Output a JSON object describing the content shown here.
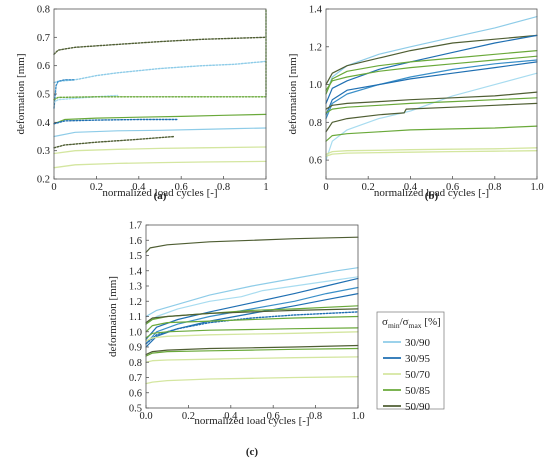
{
  "chart_data": [
    {
      "panel": "a",
      "panel_label": "(a)",
      "type": "line",
      "xlabel": "normalized load cycles [-]",
      "ylabel": "deformation [mm]",
      "xlim": [
        0,
        1
      ],
      "ylim": [
        0.2,
        0.8
      ],
      "xticks": [
        0,
        0.2,
        0.4,
        0.6,
        0.8,
        1
      ],
      "xtick_labels": [
        "0",
        "0.2",
        "0.4",
        "0.6",
        "0.8",
        "1"
      ],
      "yticks": [
        0.2,
        0.3,
        0.4,
        0.5,
        0.6,
        0.7,
        0.8
      ],
      "ytick_labels": [
        "0.2",
        "0.3",
        "0.4",
        "0.5",
        "0.6",
        "0.7",
        "0.8"
      ],
      "grid": false,
      "series": [
        {
          "group": "50/90",
          "color": "#4f5e33",
          "dash": "dotted",
          "x": [
            0,
            0.02,
            0.1,
            0.3,
            0.5,
            0.7,
            1.0
          ],
          "y": [
            0.64,
            0.655,
            0.665,
            0.675,
            0.685,
            0.693,
            0.7
          ]
        },
        {
          "group": "30/90",
          "color": "#8ecce8",
          "dash": "dotted",
          "x": [
            0,
            0.02,
            0.1,
            0.2,
            0.3,
            0.5,
            0.7,
            0.85,
            1.0
          ],
          "y": [
            0.54,
            0.545,
            0.55,
            0.565,
            0.575,
            0.59,
            0.6,
            0.605,
            0.615
          ]
        },
        {
          "group": "30/95",
          "color": "#3a8fc8",
          "dash": "dotted",
          "x": [
            0,
            0.01,
            0.02,
            0.05,
            0.1
          ],
          "y": [
            0.45,
            0.53,
            0.545,
            0.55,
            0.55
          ]
        },
        {
          "group": "30/90",
          "color": "#a8dcf0",
          "dash": "dotted",
          "x": [
            0,
            0.02,
            0.1,
            0.2,
            0.3
          ],
          "y": [
            0.47,
            0.48,
            0.485,
            0.49,
            0.495
          ]
        },
        {
          "group": "50/85",
          "color": "#6aa93a",
          "dash": "dotted",
          "x": [
            0,
            0.02,
            0.2,
            0.5,
            0.8,
            0.99,
            1.0,
            1.0
          ],
          "y": [
            0.48,
            0.488,
            0.49,
            0.49,
            0.49,
            0.49,
            0.49,
            0.8
          ]
        },
        {
          "group": "50/85",
          "color": "#6aa93a",
          "dash": "solid",
          "x": [
            0,
            0.05,
            0.2,
            0.4,
            0.6,
            0.8,
            1.0
          ],
          "y": [
            0.395,
            0.41,
            0.415,
            0.418,
            0.421,
            0.425,
            0.428
          ]
        },
        {
          "group": "30/95",
          "color": "#1f6fb2",
          "dash": "dotted",
          "x": [
            0,
            0.05,
            0.2,
            0.4,
            0.58
          ],
          "y": [
            0.395,
            0.405,
            0.408,
            0.41,
            0.41
          ]
        },
        {
          "group": "30/90",
          "color": "#8ecce8",
          "dash": "solid",
          "x": [
            0,
            0.1,
            0.3,
            0.5,
            0.7,
            0.85,
            1.0
          ],
          "y": [
            0.35,
            0.365,
            0.37,
            0.372,
            0.375,
            0.378,
            0.38
          ]
        },
        {
          "group": "50/90",
          "color": "#4f5e33",
          "dash": "dotted",
          "x": [
            0,
            0.05,
            0.2,
            0.4,
            0.57
          ],
          "y": [
            0.31,
            0.32,
            0.33,
            0.34,
            0.35
          ]
        },
        {
          "group": "50/70",
          "color": "#d4e6a0",
          "dash": "solid",
          "x": [
            0,
            0.1,
            0.3,
            0.5,
            0.7,
            1.0
          ],
          "y": [
            0.29,
            0.3,
            0.305,
            0.308,
            0.31,
            0.313
          ]
        },
        {
          "group": "50/70",
          "color": "#d4e6a0",
          "dash": "solid",
          "x": [
            0,
            0.1,
            0.3,
            0.5,
            0.7,
            1.0
          ],
          "y": [
            0.24,
            0.25,
            0.255,
            0.258,
            0.26,
            0.262
          ]
        }
      ]
    },
    {
      "panel": "b",
      "panel_label": "(b)",
      "type": "line",
      "xlabel": "normalized load cycles [-]",
      "ylabel": "deformation [mm]",
      "xlim": [
        0,
        1
      ],
      "ylim": [
        0.5,
        1.4
      ],
      "xticks": [
        0,
        0.2,
        0.4,
        0.6,
        0.8,
        1
      ],
      "xtick_labels": [
        "0",
        "0.2",
        "0.4",
        "0.6",
        "0.8",
        "1.0"
      ],
      "yticks": [
        0.6,
        0.8,
        1.0,
        1.2,
        1.4
      ],
      "ytick_labels": [
        "0.6",
        "0.8",
        "1.0",
        "1.2",
        "1.4"
      ],
      "grid": false,
      "series": [
        {
          "group": "30/90",
          "color": "#8ecce8",
          "x": [
            0,
            0.03,
            0.1,
            0.25,
            0.4,
            0.6,
            0.8,
            1.0
          ],
          "y": [
            0.95,
            1.04,
            1.1,
            1.16,
            1.2,
            1.25,
            1.3,
            1.36
          ]
        },
        {
          "group": "50/90",
          "color": "#4f5e33",
          "x": [
            0,
            0.03,
            0.1,
            0.25,
            0.4,
            0.6,
            0.8,
            1.0
          ],
          "y": [
            1.0,
            1.06,
            1.1,
            1.14,
            1.18,
            1.22,
            1.24,
            1.26
          ]
        },
        {
          "group": "30/95",
          "color": "#1f6fb2",
          "x": [
            0,
            0.03,
            0.1,
            0.25,
            0.4,
            0.6,
            0.8,
            1.0
          ],
          "y": [
            0.9,
            0.98,
            1.02,
            1.08,
            1.12,
            1.17,
            1.22,
            1.26
          ]
        },
        {
          "group": "50/85",
          "color": "#6aa93a",
          "x": [
            0,
            0.03,
            0.1,
            0.25,
            0.4,
            0.6,
            0.8,
            1.0
          ],
          "y": [
            0.95,
            1.03,
            1.07,
            1.1,
            1.12,
            1.14,
            1.16,
            1.18
          ]
        },
        {
          "group": "50/85",
          "color": "#6aa93a",
          "x": [
            0,
            0.03,
            0.1,
            0.25,
            0.4,
            0.6,
            0.8,
            1.0
          ],
          "y": [
            0.97,
            1.02,
            1.04,
            1.07,
            1.09,
            1.11,
            1.13,
            1.15
          ]
        },
        {
          "group": "30/95",
          "color": "#3a8fc8",
          "x": [
            0,
            0.03,
            0.1,
            0.25,
            0.4,
            0.6,
            0.8,
            1.0
          ],
          "y": [
            0.82,
            0.9,
            0.95,
            1.0,
            1.04,
            1.08,
            1.11,
            1.13
          ]
        },
        {
          "group": "30/95",
          "color": "#1f6fb2",
          "x": [
            0,
            0.03,
            0.1,
            0.25,
            0.4,
            0.6,
            0.8,
            1.0
          ],
          "y": [
            0.84,
            0.92,
            0.97,
            1.0,
            1.03,
            1.06,
            1.09,
            1.12
          ]
        },
        {
          "group": "30/90",
          "color": "#a8dcf0",
          "x": [
            0,
            0.03,
            0.1,
            0.25,
            0.4,
            0.6,
            0.8,
            1.0
          ],
          "y": [
            0.6,
            0.7,
            0.76,
            0.82,
            0.86,
            0.94,
            1.0,
            1.06
          ]
        },
        {
          "group": "50/90",
          "color": "#4f5e33",
          "x": [
            0,
            0.03,
            0.1,
            0.25,
            0.4,
            0.6,
            0.8,
            1.0
          ],
          "y": [
            0.87,
            0.89,
            0.9,
            0.91,
            0.92,
            0.93,
            0.94,
            0.96
          ]
        },
        {
          "group": "50/85",
          "color": "#6aa93a",
          "x": [
            0,
            0.03,
            0.1,
            0.25,
            0.4,
            0.6,
            0.8,
            1.0
          ],
          "y": [
            0.85,
            0.87,
            0.88,
            0.89,
            0.9,
            0.91,
            0.92,
            0.93
          ]
        },
        {
          "group": "50/90",
          "color": "#4f5e33",
          "x": [
            0,
            0.03,
            0.1,
            0.25,
            0.37,
            0.38,
            0.6,
            0.8,
            1.0
          ],
          "y": [
            0.75,
            0.8,
            0.82,
            0.84,
            0.85,
            0.87,
            0.88,
            0.89,
            0.9
          ]
        },
        {
          "group": "50/85",
          "color": "#6aa93a",
          "x": [
            0,
            0.03,
            0.1,
            0.25,
            0.4,
            0.6,
            0.8,
            1.0
          ],
          "y": [
            0.7,
            0.73,
            0.74,
            0.75,
            0.76,
            0.765,
            0.77,
            0.78
          ]
        },
        {
          "group": "50/70",
          "color": "#d4e6a0",
          "x": [
            0,
            0.03,
            0.1,
            0.25,
            0.4,
            0.6,
            0.8,
            1.0
          ],
          "y": [
            0.63,
            0.645,
            0.65,
            0.652,
            0.655,
            0.658,
            0.66,
            0.665
          ]
        },
        {
          "group": "50/70",
          "color": "#d4e6a0",
          "x": [
            0,
            0.03,
            0.1,
            0.25,
            0.4,
            0.6,
            0.8,
            1.0
          ],
          "y": [
            0.62,
            0.632,
            0.637,
            0.64,
            0.642,
            0.645,
            0.647,
            0.65
          ]
        }
      ]
    },
    {
      "panel": "c",
      "panel_label": "(c)",
      "type": "line",
      "xlabel": "normalized load cycles [-]",
      "ylabel": "deformation [mm]",
      "xlim": [
        0,
        1
      ],
      "ylim": [
        0.5,
        1.7
      ],
      "xticks": [
        0,
        0.2,
        0.4,
        0.6,
        0.8,
        1
      ],
      "xtick_labels": [
        "0.0",
        "0.2",
        "0.4",
        "0.6",
        "0.8",
        "1.0"
      ],
      "yticks": [
        0.5,
        0.6,
        0.7,
        0.8,
        0.9,
        1.0,
        1.1,
        1.2,
        1.3,
        1.4,
        1.5,
        1.6,
        1.7
      ],
      "ytick_labels": [
        "0.5",
        "0.6",
        "0.7",
        "0.8",
        "0.9",
        "1.0",
        "1.1",
        "1.2",
        "1.3",
        "1.4",
        "1.5",
        "1.6",
        "1.7"
      ],
      "grid": false,
      "legend": {
        "placement": "right",
        "title_main": "σ",
        "title_sub1": "min",
        "title_mid": "/σ",
        "title_sub2": "max",
        "title_unit": " [%]",
        "entries": [
          {
            "label": "30/90",
            "color": "#8ecce8"
          },
          {
            "label": "30/95",
            "color": "#1f6fb2"
          },
          {
            "label": "50/70",
            "color": "#d4e6a0"
          },
          {
            "label": "50/85",
            "color": "#6aa93a"
          },
          {
            "label": "50/90",
            "color": "#4f5e33"
          }
        ]
      },
      "series": [
        {
          "group": "50/90",
          "color": "#4f5e33",
          "dash": "solid",
          "x": [
            0,
            0.02,
            0.1,
            0.3,
            0.5,
            0.7,
            1.0
          ],
          "y": [
            1.52,
            1.55,
            1.57,
            1.59,
            1.6,
            1.61,
            1.62
          ]
        },
        {
          "group": "30/90",
          "color": "#8ecce8",
          "dash": "solid",
          "x": [
            0,
            0.05,
            0.15,
            0.3,
            0.5,
            0.7,
            0.9,
            1.0
          ],
          "y": [
            1.1,
            1.14,
            1.18,
            1.24,
            1.3,
            1.35,
            1.4,
            1.42
          ]
        },
        {
          "group": "30/90",
          "color": "#a8dcf0",
          "dash": "solid",
          "x": [
            0,
            0.05,
            0.15,
            0.3,
            0.45,
            0.55,
            0.7,
            0.85,
            1.0
          ],
          "y": [
            1.05,
            1.1,
            1.15,
            1.2,
            1.23,
            1.27,
            1.3,
            1.33,
            1.36
          ]
        },
        {
          "group": "30/95",
          "color": "#1f6fb2",
          "dash": "solid",
          "x": [
            0,
            0.05,
            0.15,
            0.3,
            0.5,
            0.7,
            0.85,
            1.0
          ],
          "y": [
            0.95,
            1.03,
            1.08,
            1.13,
            1.19,
            1.25,
            1.3,
            1.35
          ]
        },
        {
          "group": "30/95",
          "color": "#3a8fc8",
          "dash": "solid",
          "x": [
            0,
            0.05,
            0.15,
            0.3,
            0.5,
            0.7,
            0.85,
            1.0
          ],
          "y": [
            0.92,
            1.0,
            1.05,
            1.1,
            1.15,
            1.2,
            1.25,
            1.29
          ]
        },
        {
          "group": "30/95",
          "color": "#1f6fb2",
          "dash": "solid",
          "x": [
            0,
            0.05,
            0.15,
            0.3,
            0.5,
            0.7,
            0.85,
            1.0
          ],
          "y": [
            0.9,
            0.97,
            1.02,
            1.07,
            1.12,
            1.17,
            1.21,
            1.25
          ]
        },
        {
          "group": "50/85",
          "color": "#6aa93a",
          "dash": "solid",
          "x": [
            0,
            0.03,
            0.1,
            0.3,
            0.5,
            0.7,
            1.0
          ],
          "y": [
            1.05,
            1.08,
            1.1,
            1.12,
            1.14,
            1.15,
            1.17
          ]
        },
        {
          "group": "50/90",
          "color": "#4f5e33",
          "dash": "solid",
          "x": [
            0,
            0.03,
            0.1,
            0.3,
            0.5,
            0.7,
            1.0
          ],
          "y": [
            1.06,
            1.09,
            1.1,
            1.12,
            1.13,
            1.14,
            1.15
          ]
        },
        {
          "group": "30/95",
          "color": "#1f6fb2",
          "dash": "dotted",
          "x": [
            0,
            0.05,
            0.15,
            0.3,
            0.5,
            0.7,
            1.0
          ],
          "y": [
            0.92,
            0.98,
            1.02,
            1.06,
            1.09,
            1.11,
            1.13
          ]
        },
        {
          "group": "50/85",
          "color": "#6aa93a",
          "dash": "solid",
          "x": [
            0,
            0.03,
            0.1,
            0.3,
            0.5,
            0.7,
            1.0
          ],
          "y": [
            1.0,
            1.04,
            1.06,
            1.07,
            1.08,
            1.09,
            1.1
          ]
        },
        {
          "group": "50/85",
          "color": "#6aa93a",
          "dash": "solid",
          "x": [
            0,
            0.03,
            0.1,
            0.3,
            0.5,
            0.7,
            1.0
          ],
          "y": [
            0.96,
            0.99,
            1.0,
            1.01,
            1.015,
            1.02,
            1.025
          ]
        },
        {
          "group": "50/70",
          "color": "#d4e6a0",
          "dash": "solid",
          "x": [
            0,
            0.03,
            0.1,
            0.3,
            0.5,
            0.7,
            1.0
          ],
          "y": [
            0.94,
            0.96,
            0.97,
            0.98,
            0.985,
            0.99,
            1.0
          ]
        },
        {
          "group": "50/90",
          "color": "#4f5e33",
          "dash": "solid",
          "x": [
            0,
            0.03,
            0.1,
            0.3,
            0.5,
            0.7,
            1.0
          ],
          "y": [
            0.85,
            0.87,
            0.88,
            0.89,
            0.895,
            0.9,
            0.91
          ]
        },
        {
          "group": "50/85",
          "color": "#6aa93a",
          "dash": "solid",
          "x": [
            0,
            0.03,
            0.1,
            0.3,
            0.5,
            0.7,
            1.0
          ],
          "y": [
            0.84,
            0.86,
            0.87,
            0.875,
            0.88,
            0.885,
            0.89
          ]
        },
        {
          "group": "50/70",
          "color": "#d4e6a0",
          "dash": "solid",
          "x": [
            0,
            0.03,
            0.1,
            0.3,
            0.5,
            0.7,
            1.0
          ],
          "y": [
            0.8,
            0.81,
            0.815,
            0.82,
            0.825,
            0.83,
            0.835
          ]
        },
        {
          "group": "50/70",
          "color": "#d4e6a0",
          "dash": "solid",
          "x": [
            0,
            0.03,
            0.1,
            0.3,
            0.5,
            0.7,
            1.0
          ],
          "y": [
            0.66,
            0.67,
            0.68,
            0.69,
            0.695,
            0.7,
            0.705
          ]
        }
      ]
    }
  ]
}
